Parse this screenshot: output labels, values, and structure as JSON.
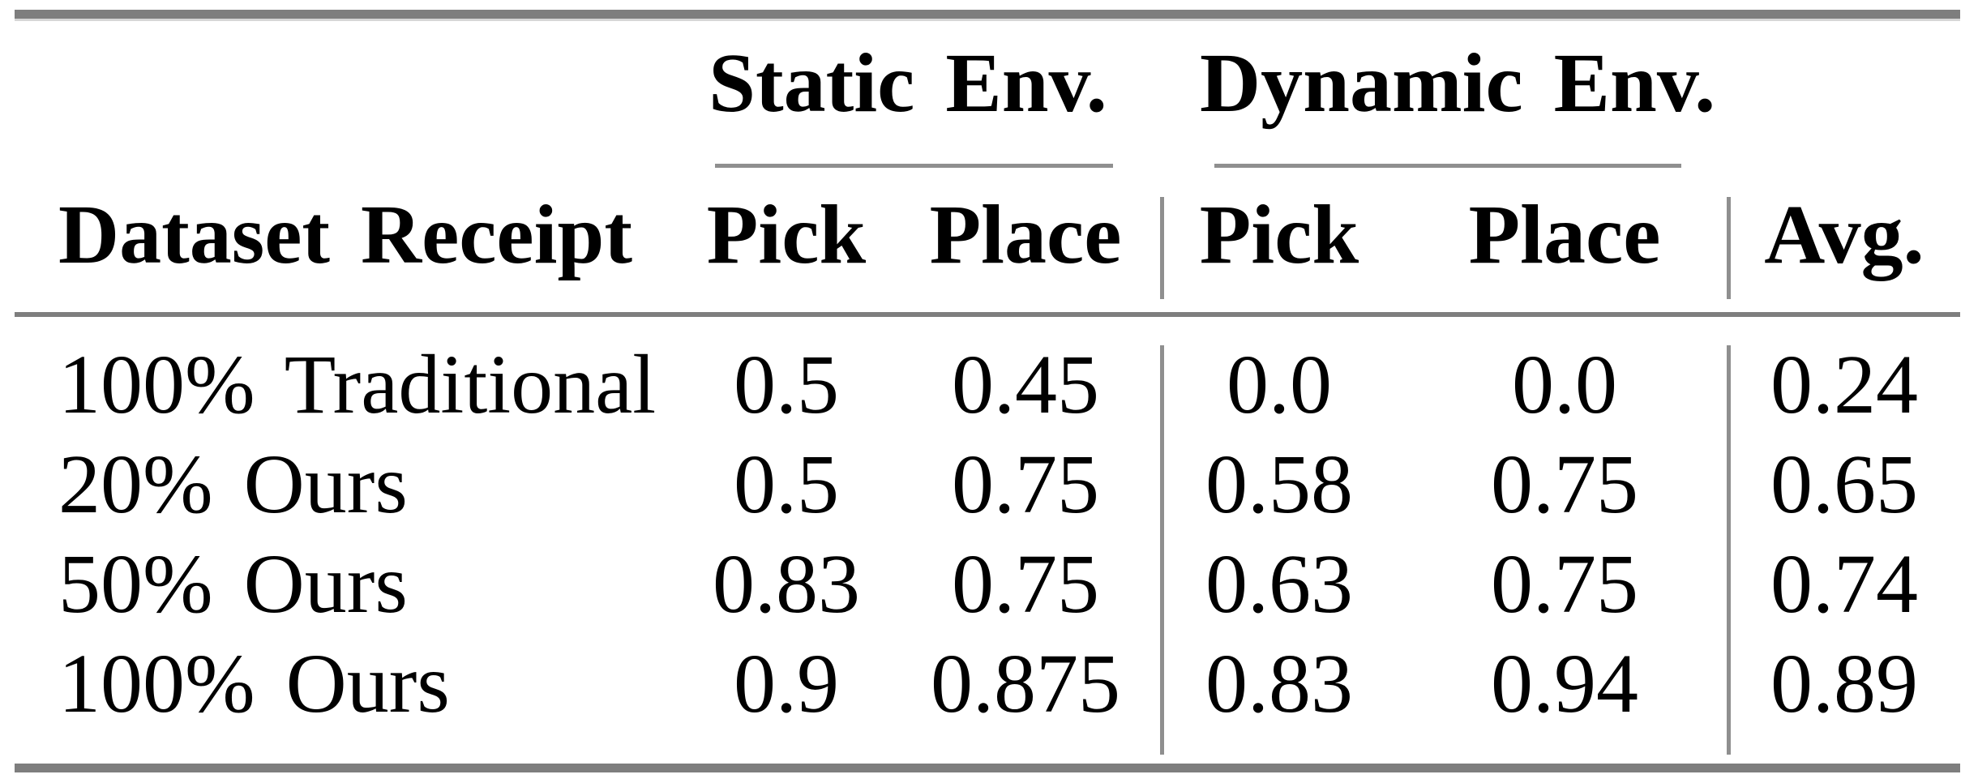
{
  "table": {
    "group_headers": [
      "Static Env.",
      "Dynamic Env."
    ],
    "columns": [
      "Dataset Receipt",
      "Pick",
      "Place",
      "Pick",
      "Place",
      "Avg."
    ],
    "rows": [
      {
        "label": "100% Traditional",
        "values": [
          "0.5",
          "0.45",
          "0.0",
          "0.0",
          "0.24"
        ]
      },
      {
        "label": "20% Ours",
        "values": [
          "0.5",
          "0.75",
          "0.58",
          "0.75",
          "0.65"
        ]
      },
      {
        "label": "50% Ours",
        "values": [
          "0.83",
          "0.75",
          "0.63",
          "0.75",
          "0.74"
        ]
      },
      {
        "label": "100% Ours",
        "values": [
          "0.9",
          "0.875",
          "0.83",
          "0.94",
          "0.89"
        ]
      }
    ]
  },
  "colors": {
    "heavy_rule_gray": "#7e7e7e",
    "thin_rule_gray": "#8f8f8f",
    "rule_edge_light_gray": "#d6d6d6",
    "text": "#000000",
    "background": "#ffffff"
  },
  "chart_data": {
    "type": "table",
    "column_groups": [
      {
        "label": "Static Env.",
        "columns": [
          "Pick",
          "Place"
        ]
      },
      {
        "label": "Dynamic Env.",
        "columns": [
          "Pick",
          "Place"
        ]
      }
    ],
    "columns": [
      "Dataset Receipt",
      "Static Env. Pick",
      "Static Env. Place",
      "Dynamic Env. Pick",
      "Dynamic Env. Place",
      "Avg."
    ],
    "rows": [
      [
        "100% Traditional",
        0.5,
        0.45,
        0.0,
        0.0,
        0.24
      ],
      [
        "20% Ours",
        0.5,
        0.75,
        0.58,
        0.75,
        0.65
      ],
      [
        "50% Ours",
        0.83,
        0.75,
        0.63,
        0.75,
        0.74
      ],
      [
        "100% Ours",
        0.9,
        0.875,
        0.83,
        0.94,
        0.89
      ]
    ]
  }
}
